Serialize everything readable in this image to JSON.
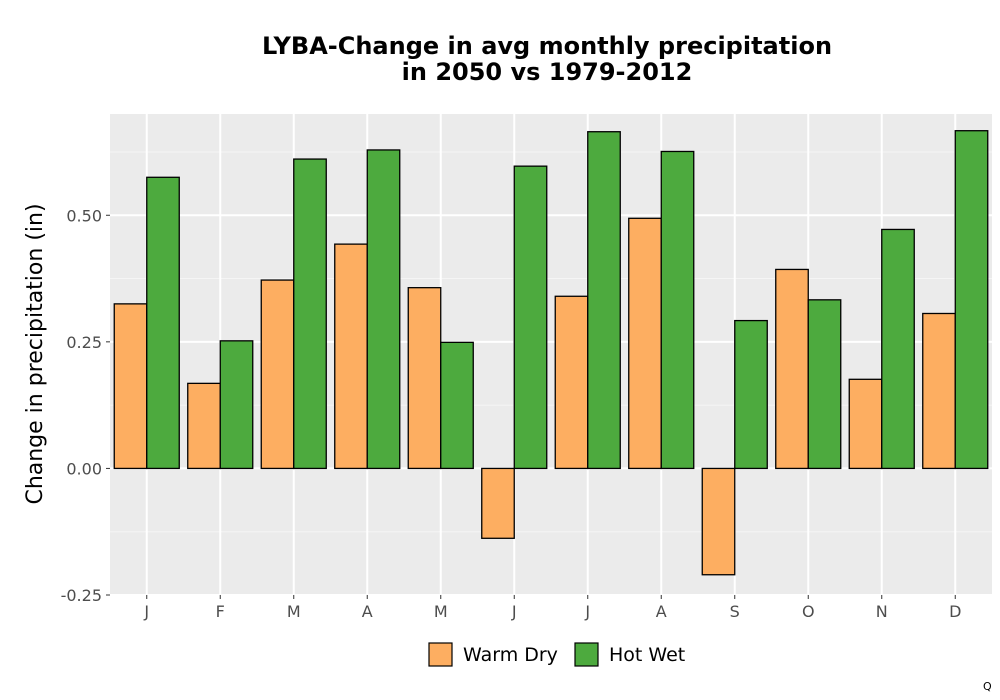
{
  "chart_data": {
    "type": "bar",
    "title_lines": [
      "LYBA-Change in avg monthly precipitation",
      "in 2050 vs 1979-2012"
    ],
    "xlabel": "",
    "ylabel": "Change in precipitation (in)",
    "categories": [
      "J",
      "F",
      "M",
      "A",
      "M",
      "J",
      "J",
      "A",
      "S",
      "O",
      "N",
      "D"
    ],
    "series": [
      {
        "name": "Warm Dry",
        "color": "#FDAE61",
        "values": [
          0.325,
          0.168,
          0.372,
          0.443,
          0.357,
          -0.138,
          0.34,
          0.494,
          -0.21,
          0.393,
          0.176,
          0.306
        ]
      },
      {
        "name": "Hot Wet",
        "color": "#4DAA3E",
        "values": [
          0.575,
          0.252,
          0.611,
          0.629,
          0.249,
          0.597,
          0.665,
          0.626,
          0.292,
          0.333,
          0.472,
          0.667
        ]
      }
    ],
    "ylim": [
      -0.25,
      0.7
    ],
    "yticks": [
      -0.25,
      0.0,
      0.25,
      0.5
    ],
    "ytick_labels": [
      "-0.25",
      "0.00",
      "0.25",
      "0.50"
    ],
    "grid": true,
    "legend_position": "bottom"
  },
  "corner_mark": "Q"
}
